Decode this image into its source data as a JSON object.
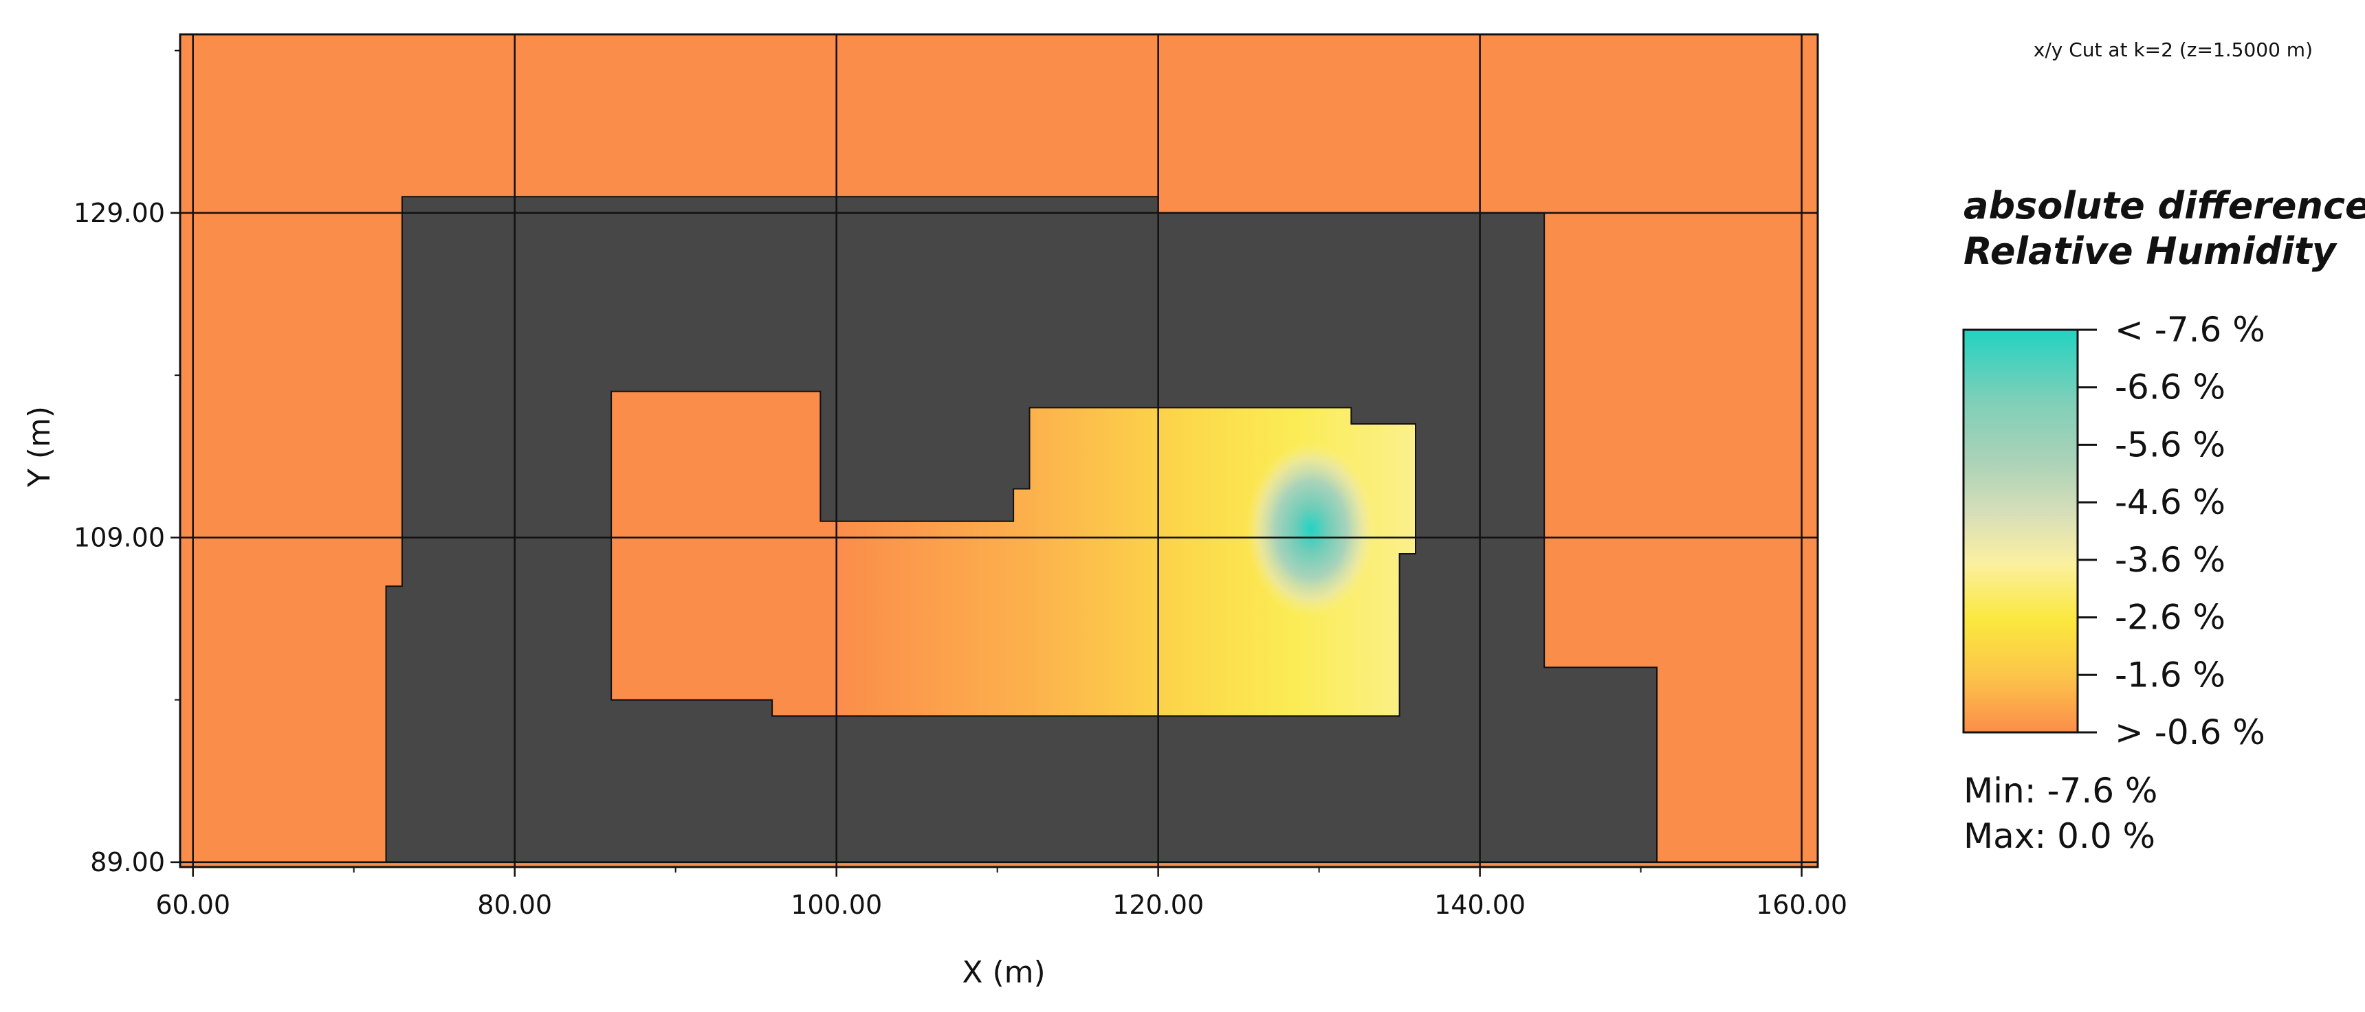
{
  "chart_data": {
    "type": "heatmap",
    "subtitle": "x/y Cut at k=2 (z=1.5000 m)",
    "xlabel": "X (m)",
    "ylabel": "Y (m)",
    "xlim": [
      59.2,
      161.0
    ],
    "ylim": [
      88.7,
      140.0
    ],
    "x_ticks": [
      "60.00",
      "80.00",
      "100.00",
      "120.00",
      "140.00",
      "160.00"
    ],
    "y_ticks": [
      "89.00",
      "109.00",
      "129.00"
    ],
    "grid": true,
    "legend": {
      "title_lines": [
        "absolute difference",
        "Relative Humidity"
      ],
      "placement": "right",
      "labels": [
        "< -7.6 %",
        "-6.6  %",
        "-5.6  %",
        "-4.6  %",
        "-3.6  %",
        "-2.6  %",
        "-1.6  %",
        "> -0.6 %"
      ],
      "colors": [
        "#22D3C2",
        "#80CFB8",
        "#A8D2B8",
        "#D8DFB8",
        "#FBF0A0",
        "#FBE83E",
        "#FCC54A",
        "#FB8D4B"
      ],
      "min_label": "Min: -7.6 %",
      "max_label": "Max: 0.0 %"
    },
    "background_value_color": "#FB8D4B",
    "building_color": "#474747",
    "buildings": [
      {
        "name": "building-main",
        "points": [
          [
            73,
            130
          ],
          [
            120,
            130
          ],
          [
            120,
            129
          ],
          [
            144,
            129
          ],
          [
            144,
            101
          ],
          [
            151,
            101
          ],
          [
            151,
            89
          ],
          [
            72,
            89
          ],
          [
            72,
            106
          ],
          [
            73,
            106
          ]
        ]
      }
    ],
    "open_areas": [
      {
        "name": "courtyard",
        "points": [
          [
            86,
            118
          ],
          [
            99,
            118
          ],
          [
            99,
            110
          ],
          [
            111,
            110
          ],
          [
            111,
            112
          ],
          [
            112,
            112
          ],
          [
            112,
            117
          ],
          [
            120,
            117
          ],
          [
            120,
            117
          ],
          [
            132,
            117
          ],
          [
            132,
            116
          ],
          [
            136,
            116
          ],
          [
            136,
            108
          ],
          [
            135,
            108
          ],
          [
            135,
            98
          ],
          [
            96,
            98
          ],
          [
            96,
            99
          ],
          [
            86,
            99
          ]
        ]
      }
    ],
    "field": {
      "description_values": "absolute difference field inside courtyard",
      "hotspot_center": [
        129.5,
        109.5
      ],
      "min_value": -7.6,
      "max_value": 0.0
    }
  }
}
